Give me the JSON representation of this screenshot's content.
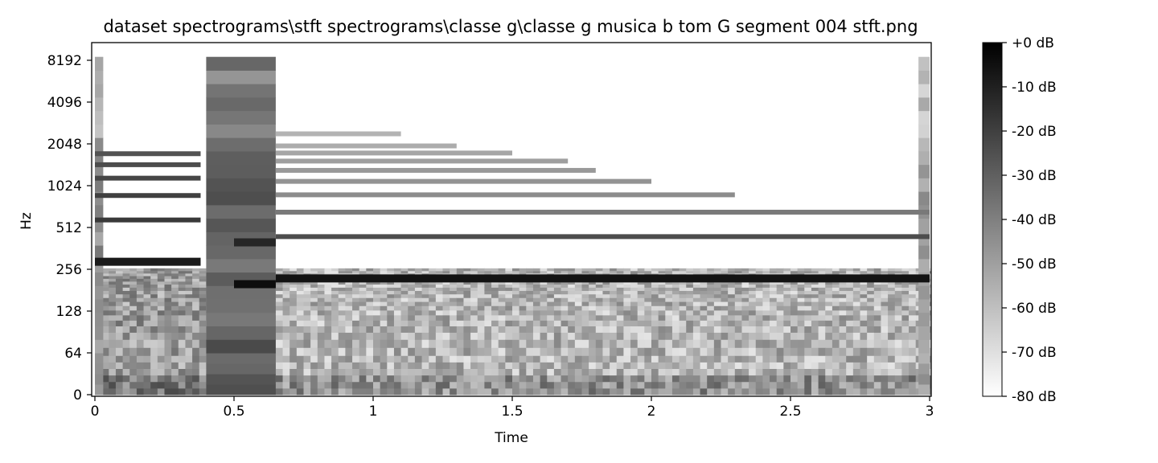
{
  "chart_data": {
    "type": "heatmap",
    "title": "dataset spectrograms\\stft spectrograms\\classe g\\classe g musica b tom G segment 004 stft.png",
    "xlabel": "Time",
    "ylabel": "Hz",
    "xlim": [
      0,
      3
    ],
    "x_ticks": [
      0,
      0.5,
      1,
      1.5,
      2,
      2.5,
      3
    ],
    "x_tick_labels": [
      "0",
      "0.5",
      "1",
      "1.5",
      "2",
      "2.5",
      "3"
    ],
    "y_scale": "symlog",
    "y_ticks": [
      0,
      64,
      128,
      256,
      512,
      1024,
      2048,
      4096,
      8192
    ],
    "y_tick_labels": [
      "0",
      "64",
      "128",
      "256",
      "512",
      "1024",
      "2048",
      "4096",
      "8192"
    ],
    "colormap": "gray_r",
    "colorbar": {
      "range_db": [
        -80,
        0
      ],
      "ticks": [
        0,
        -10,
        -20,
        -30,
        -40,
        -50,
        -60,
        -70,
        -80
      ],
      "tick_labels": [
        "+0 dB",
        "-10 dB",
        "-20 dB",
        "-30 dB",
        "-40 dB",
        "-50 dB",
        "-60 dB",
        "-70 dB",
        "-80 dB"
      ],
      "high_color": "#000000",
      "low_color": "#ffffff"
    },
    "harmonic_bands": [
      {
        "t_start": 0.0,
        "t_end": 0.38,
        "freq_hz": 290,
        "db": -8
      },
      {
        "t_start": 0.0,
        "t_end": 0.38,
        "freq_hz": 580,
        "db": -18
      },
      {
        "t_start": 0.0,
        "t_end": 0.38,
        "freq_hz": 870,
        "db": -20
      },
      {
        "t_start": 0.0,
        "t_end": 0.38,
        "freq_hz": 1160,
        "db": -22
      },
      {
        "t_start": 0.0,
        "t_end": 0.38,
        "freq_hz": 1450,
        "db": -24
      },
      {
        "t_start": 0.0,
        "t_end": 0.38,
        "freq_hz": 1740,
        "db": -26
      },
      {
        "t_start": 0.5,
        "t_end": 0.65,
        "freq_hz": 200,
        "db": -4
      },
      {
        "t_start": 0.5,
        "t_end": 0.65,
        "freq_hz": 400,
        "db": -12
      },
      {
        "t_start": 0.65,
        "t_end": 3.0,
        "freq_hz": 220,
        "db": -6
      },
      {
        "t_start": 0.65,
        "t_end": 3.0,
        "freq_hz": 440,
        "db": -24
      },
      {
        "t_start": 0.65,
        "t_end": 3.0,
        "freq_hz": 660,
        "db": -38
      },
      {
        "t_start": 0.65,
        "t_end": 2.3,
        "freq_hz": 880,
        "db": -44
      },
      {
        "t_start": 0.65,
        "t_end": 2.0,
        "freq_hz": 1100,
        "db": -46
      },
      {
        "t_start": 0.65,
        "t_end": 1.8,
        "freq_hz": 1320,
        "db": -48
      },
      {
        "t_start": 0.65,
        "t_end": 1.7,
        "freq_hz": 1540,
        "db": -50
      },
      {
        "t_start": 0.65,
        "t_end": 1.5,
        "freq_hz": 1760,
        "db": -52
      },
      {
        "t_start": 0.65,
        "t_end": 1.3,
        "freq_hz": 1980,
        "db": -54
      },
      {
        "t_start": 0.65,
        "t_end": 1.1,
        "freq_hz": 2420,
        "db": -56
      }
    ],
    "broadband_onsets": [
      {
        "t_start": 0.0,
        "t_end": 0.03,
        "db": -45
      },
      {
        "t_start": 0.4,
        "t_end": 0.65,
        "db": -30
      },
      {
        "t_start": 2.96,
        "t_end": 3.0,
        "db": -50
      }
    ]
  }
}
